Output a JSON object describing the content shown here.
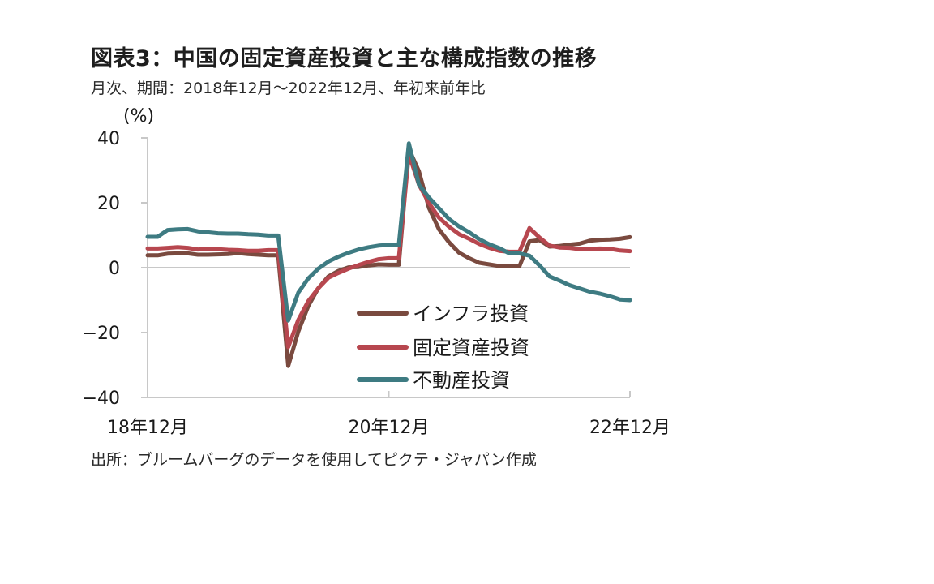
{
  "header": {
    "title": "図表3：中国の固定資産投資と主な構成指数の推移",
    "subtitle": "月次、期間：2018年12月～2022年12月、年初来前年比"
  },
  "footer": {
    "source": "出所：ブルームバーグのデータを使用してピクテ・ジャパン作成"
  },
  "colors": {
    "infra": "#7a4a3f",
    "fixed_asset": "#b7474f",
    "real_estate": "#3e7b82",
    "axis": "#c8c8c8"
  },
  "chart_data": {
    "type": "line",
    "y_unit": "(%)",
    "ylim": [
      -40,
      40
    ],
    "yticks": [
      "40",
      "20",
      "0",
      "−20",
      "−40"
    ],
    "ytick_values": [
      40,
      20,
      0,
      -20,
      -40
    ],
    "xtick_labels": [
      "18年12月",
      "20年12月",
      "22年12月"
    ],
    "xtick_index": [
      0,
      24,
      48
    ],
    "x": [
      "2018-12",
      "2019-01",
      "2019-02",
      "2019-03",
      "2019-04",
      "2019-05",
      "2019-06",
      "2019-07",
      "2019-08",
      "2019-09",
      "2019-10",
      "2019-11",
      "2019-12",
      "2020-01",
      "2020-02",
      "2020-03",
      "2020-04",
      "2020-05",
      "2020-06",
      "2020-07",
      "2020-08",
      "2020-09",
      "2020-10",
      "2020-11",
      "2020-12",
      "2021-01",
      "2021-02",
      "2021-03",
      "2021-04",
      "2021-05",
      "2021-06",
      "2021-07",
      "2021-08",
      "2021-09",
      "2021-10",
      "2021-11",
      "2021-12",
      "2022-01",
      "2022-02",
      "2022-03",
      "2022-04",
      "2022-05",
      "2022-06",
      "2022-07",
      "2022-08",
      "2022-09",
      "2022-10",
      "2022-11",
      "2022-12"
    ],
    "grid": false,
    "legend_position": "lower-center",
    "series": [
      {
        "name": "インフラ投資",
        "color_key": "infra",
        "values": [
          3.8,
          3.8,
          4.3,
          4.4,
          4.4,
          4.0,
          4.0,
          4.1,
          4.2,
          4.5,
          4.2,
          4.0,
          3.8,
          3.8,
          -30.3,
          -19.7,
          -11.8,
          -6.3,
          -2.7,
          -1.0,
          0.1,
          0.2,
          0.7,
          1.0,
          0.9,
          0.9,
          36.6,
          29.7,
          18.4,
          11.8,
          7.8,
          4.6,
          2.9,
          1.5,
          1.0,
          0.5,
          0.4,
          0.4,
          8.1,
          8.5,
          6.5,
          6.7,
          7.1,
          7.4,
          8.3,
          8.6,
          8.7,
          8.9,
          9.4
        ]
      },
      {
        "name": "固定資産投資",
        "color_key": "fixed_asset",
        "values": [
          5.9,
          5.9,
          6.1,
          6.3,
          6.1,
          5.6,
          5.8,
          5.7,
          5.5,
          5.4,
          5.2,
          5.2,
          5.4,
          5.4,
          -24.5,
          -16.1,
          -10.3,
          -6.3,
          -3.1,
          -1.6,
          -0.3,
          0.8,
          1.8,
          2.6,
          2.9,
          2.9,
          35.0,
          25.6,
          19.9,
          15.4,
          12.6,
          10.3,
          8.9,
          7.3,
          6.1,
          5.2,
          4.9,
          4.9,
          12.2,
          9.3,
          6.8,
          6.2,
          6.1,
          5.7,
          5.8,
          5.9,
          5.8,
          5.3,
          5.1
        ]
      },
      {
        "name": "不動産投資",
        "color_key": "real_estate",
        "values": [
          9.5,
          9.5,
          11.6,
          11.8,
          11.9,
          11.2,
          10.9,
          10.6,
          10.5,
          10.5,
          10.3,
          10.2,
          9.9,
          9.9,
          -16.3,
          -7.7,
          -3.3,
          -0.3,
          1.9,
          3.4,
          4.6,
          5.6,
          6.3,
          6.8,
          7.0,
          7.0,
          38.3,
          25.6,
          21.6,
          18.3,
          15.0,
          12.7,
          10.9,
          8.8,
          7.2,
          6.0,
          4.4,
          4.4,
          3.7,
          0.7,
          -2.7,
          -4.0,
          -5.4,
          -6.4,
          -7.4,
          -8.0,
          -8.8,
          -9.8,
          -10.0
        ]
      }
    ]
  }
}
